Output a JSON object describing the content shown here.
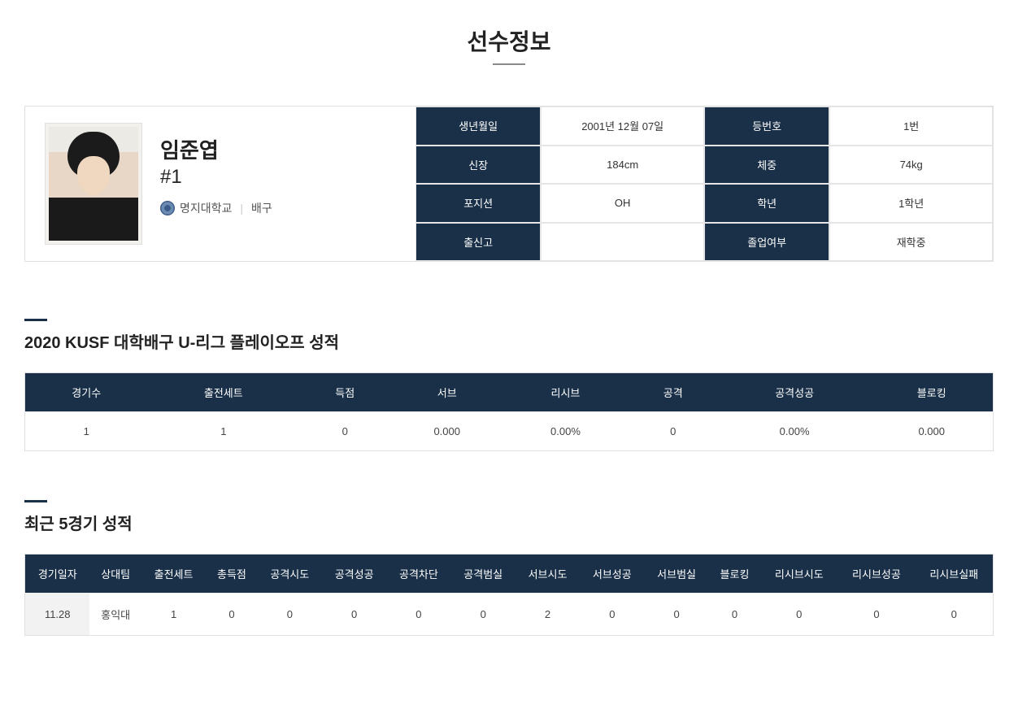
{
  "page_title": "선수정보",
  "player": {
    "name": "임준엽",
    "number_display": "#1",
    "university": "명지대학교",
    "sport": "배구"
  },
  "info": {
    "labels": {
      "birth": "생년월일",
      "jersey": "등번호",
      "height": "신장",
      "weight": "체중",
      "position": "포지션",
      "grade": "학년",
      "highschool": "출신고",
      "enrollment": "졸업여부"
    },
    "values": {
      "birth": "2001년 12월 07일",
      "jersey": "1번",
      "height": "184cm",
      "weight": "74kg",
      "position": "OH",
      "grade": "1학년",
      "highschool": "",
      "enrollment": "재학중"
    }
  },
  "season_section_title": "2020 KUSF 대학배구 U-리그 플레이오프 성적",
  "season_table": {
    "columns": [
      "경기수",
      "출전세트",
      "득점",
      "서브",
      "리시브",
      "공격",
      "공격성공",
      "블로킹"
    ],
    "row": [
      "1",
      "1",
      "0",
      "0.000",
      "0.00%",
      "0",
      "0.00%",
      "0.000"
    ]
  },
  "recent_section_title": "최근 5경기 성적",
  "recent_table": {
    "columns": [
      "경기일자",
      "상대팀",
      "출전세트",
      "총득점",
      "공격시도",
      "공격성공",
      "공격차단",
      "공격범실",
      "서브시도",
      "서브성공",
      "서브범실",
      "블로킹",
      "리시브시도",
      "리시브성공",
      "리시브실패"
    ],
    "row": [
      "11.28",
      "홍익대",
      "1",
      "0",
      "0",
      "0",
      "0",
      "0",
      "2",
      "0",
      "0",
      "0",
      "0",
      "0",
      "0"
    ]
  },
  "colors": {
    "header_bg": "#1a3048",
    "header_text": "#ffffff",
    "border": "#e0e0e0",
    "text": "#333333"
  }
}
